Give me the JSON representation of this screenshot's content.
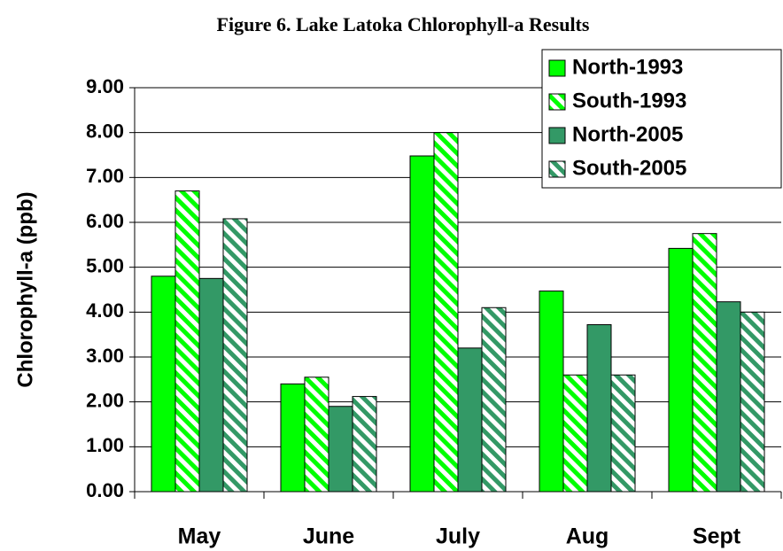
{
  "chart_data": {
    "type": "bar",
    "title": "Figure 6.  Lake Latoka Chlorophyll-a Results",
    "y_label": "Chlorophyll-a (ppb)",
    "categories": [
      "May",
      "June",
      "July",
      "Aug",
      "Sept"
    ],
    "series": [
      {
        "name": "North-1993",
        "color": "#00ff00",
        "hatch": false,
        "values": [
          4.8,
          2.4,
          7.48,
          4.47,
          5.42
        ]
      },
      {
        "name": "South-1993",
        "color": "#00ff00",
        "hatch": true,
        "values": [
          6.7,
          2.55,
          8.0,
          2.6,
          5.75
        ]
      },
      {
        "name": "North-2005",
        "color": "#339966",
        "hatch": false,
        "values": [
          4.75,
          1.9,
          3.2,
          3.72,
          4.23
        ]
      },
      {
        "name": "South-2005",
        "color": "#339966",
        "hatch": true,
        "values": [
          6.08,
          2.12,
          4.1,
          2.6,
          4.0
        ]
      }
    ],
    "ylim": [
      0,
      9
    ],
    "yticks": [
      {
        "value": 0,
        "label": "0.00"
      },
      {
        "value": 1,
        "label": "1.00"
      },
      {
        "value": 2,
        "label": "2.00"
      },
      {
        "value": 3,
        "label": "3.00"
      },
      {
        "value": 4,
        "label": "4.00"
      },
      {
        "value": 5,
        "label": "5.00"
      },
      {
        "value": 6,
        "label": "6.00"
      },
      {
        "value": 7,
        "label": "7.00"
      },
      {
        "value": 8,
        "label": "8.00"
      },
      {
        "value": 9,
        "label": "9.00"
      }
    ],
    "grid": true,
    "legend": "upper right"
  }
}
